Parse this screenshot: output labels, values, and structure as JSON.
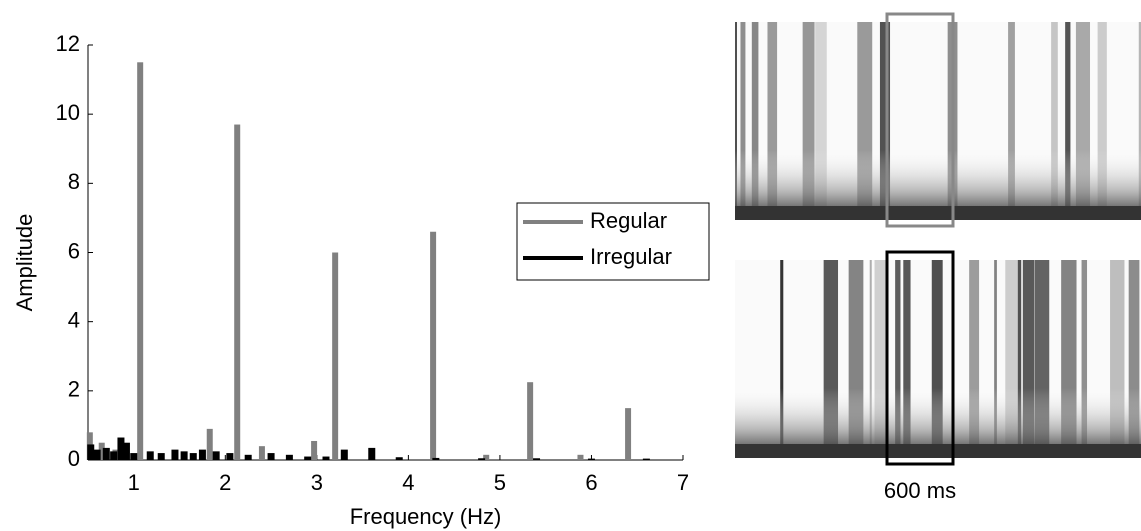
{
  "chart_data": {
    "type": "bar",
    "xlabel": "Frequency (Hz)",
    "ylabel": "Amplitude",
    "xlim": [
      0.5,
      7
    ],
    "xticks": [
      1,
      2,
      3,
      4,
      5,
      6,
      7
    ],
    "ylim": [
      0,
      12
    ],
    "yticks": [
      0,
      2,
      4,
      6,
      8,
      10,
      12
    ],
    "legend": "right",
    "series": [
      {
        "name": "Regular",
        "color": "#808080",
        "x": [
          0.52,
          0.65,
          0.8,
          1.07,
          1.83,
          2.13,
          2.4,
          2.97,
          3.2,
          4.27,
          4.85,
          5.33,
          5.88,
          6.4
        ],
        "values": [
          0.8,
          0.5,
          0.3,
          11.5,
          0.9,
          9.7,
          0.4,
          0.55,
          6.0,
          6.6,
          0.15,
          2.25,
          0.15,
          1.5
        ]
      },
      {
        "name": "Irregular",
        "color": "#000000",
        "x": [
          0.53,
          0.6,
          0.7,
          0.78,
          0.86,
          0.92,
          1.0,
          1.18,
          1.3,
          1.45,
          1.55,
          1.65,
          1.75,
          1.9,
          2.05,
          2.25,
          2.5,
          2.7,
          2.9,
          3.1,
          3.3,
          3.6,
          3.9,
          4.3,
          4.8,
          5.4,
          6.0,
          6.6
        ],
        "values": [
          0.45,
          0.3,
          0.35,
          0.25,
          0.65,
          0.5,
          0.2,
          0.25,
          0.2,
          0.3,
          0.25,
          0.2,
          0.3,
          0.25,
          0.2,
          0.15,
          0.2,
          0.15,
          0.1,
          0.1,
          0.3,
          0.35,
          0.08,
          0.06,
          0.05,
          0.05,
          0.04,
          0.04
        ]
      }
    ]
  },
  "annotation": "600 ms"
}
